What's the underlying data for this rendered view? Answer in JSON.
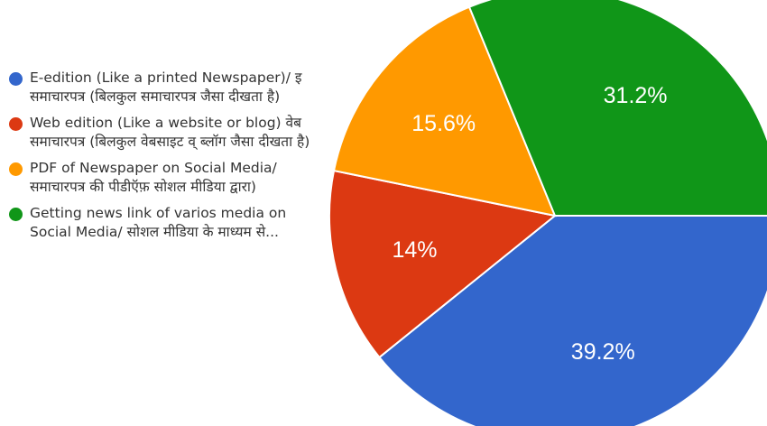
{
  "chart_data": {
    "type": "pie",
    "title": "",
    "legend_position": "left",
    "slices": [
      {
        "label": "E-edition (Like a printed Newspaper)/ इ समाचारपत्र (बिलकुल समाचारपत्र जैसा दीखता है)",
        "value": 39.2,
        "value_label": "39.2%",
        "color": "#3366cc"
      },
      {
        "label": "Web edition (Like a website or blog) वेब समाचारपत्र (बिलकुल वेबसाइट व् ब्लॉग जैसा दीखता है)",
        "value": 14,
        "value_label": "14%",
        "color": "#dc3912"
      },
      {
        "label": "PDF of Newspaper on Social Media/ समाचारपत्र की पीडीऍफ़ सोशल मीडिया द्वारा)",
        "value": 15.6,
        "value_label": "15.6%",
        "color": "#ff9900"
      },
      {
        "label": "Getting news link of varios media on Social Media/ सोशल मीडिया के माध्यम से...",
        "value": 31.2,
        "value_label": "31.2%",
        "color": "#109618"
      }
    ]
  }
}
